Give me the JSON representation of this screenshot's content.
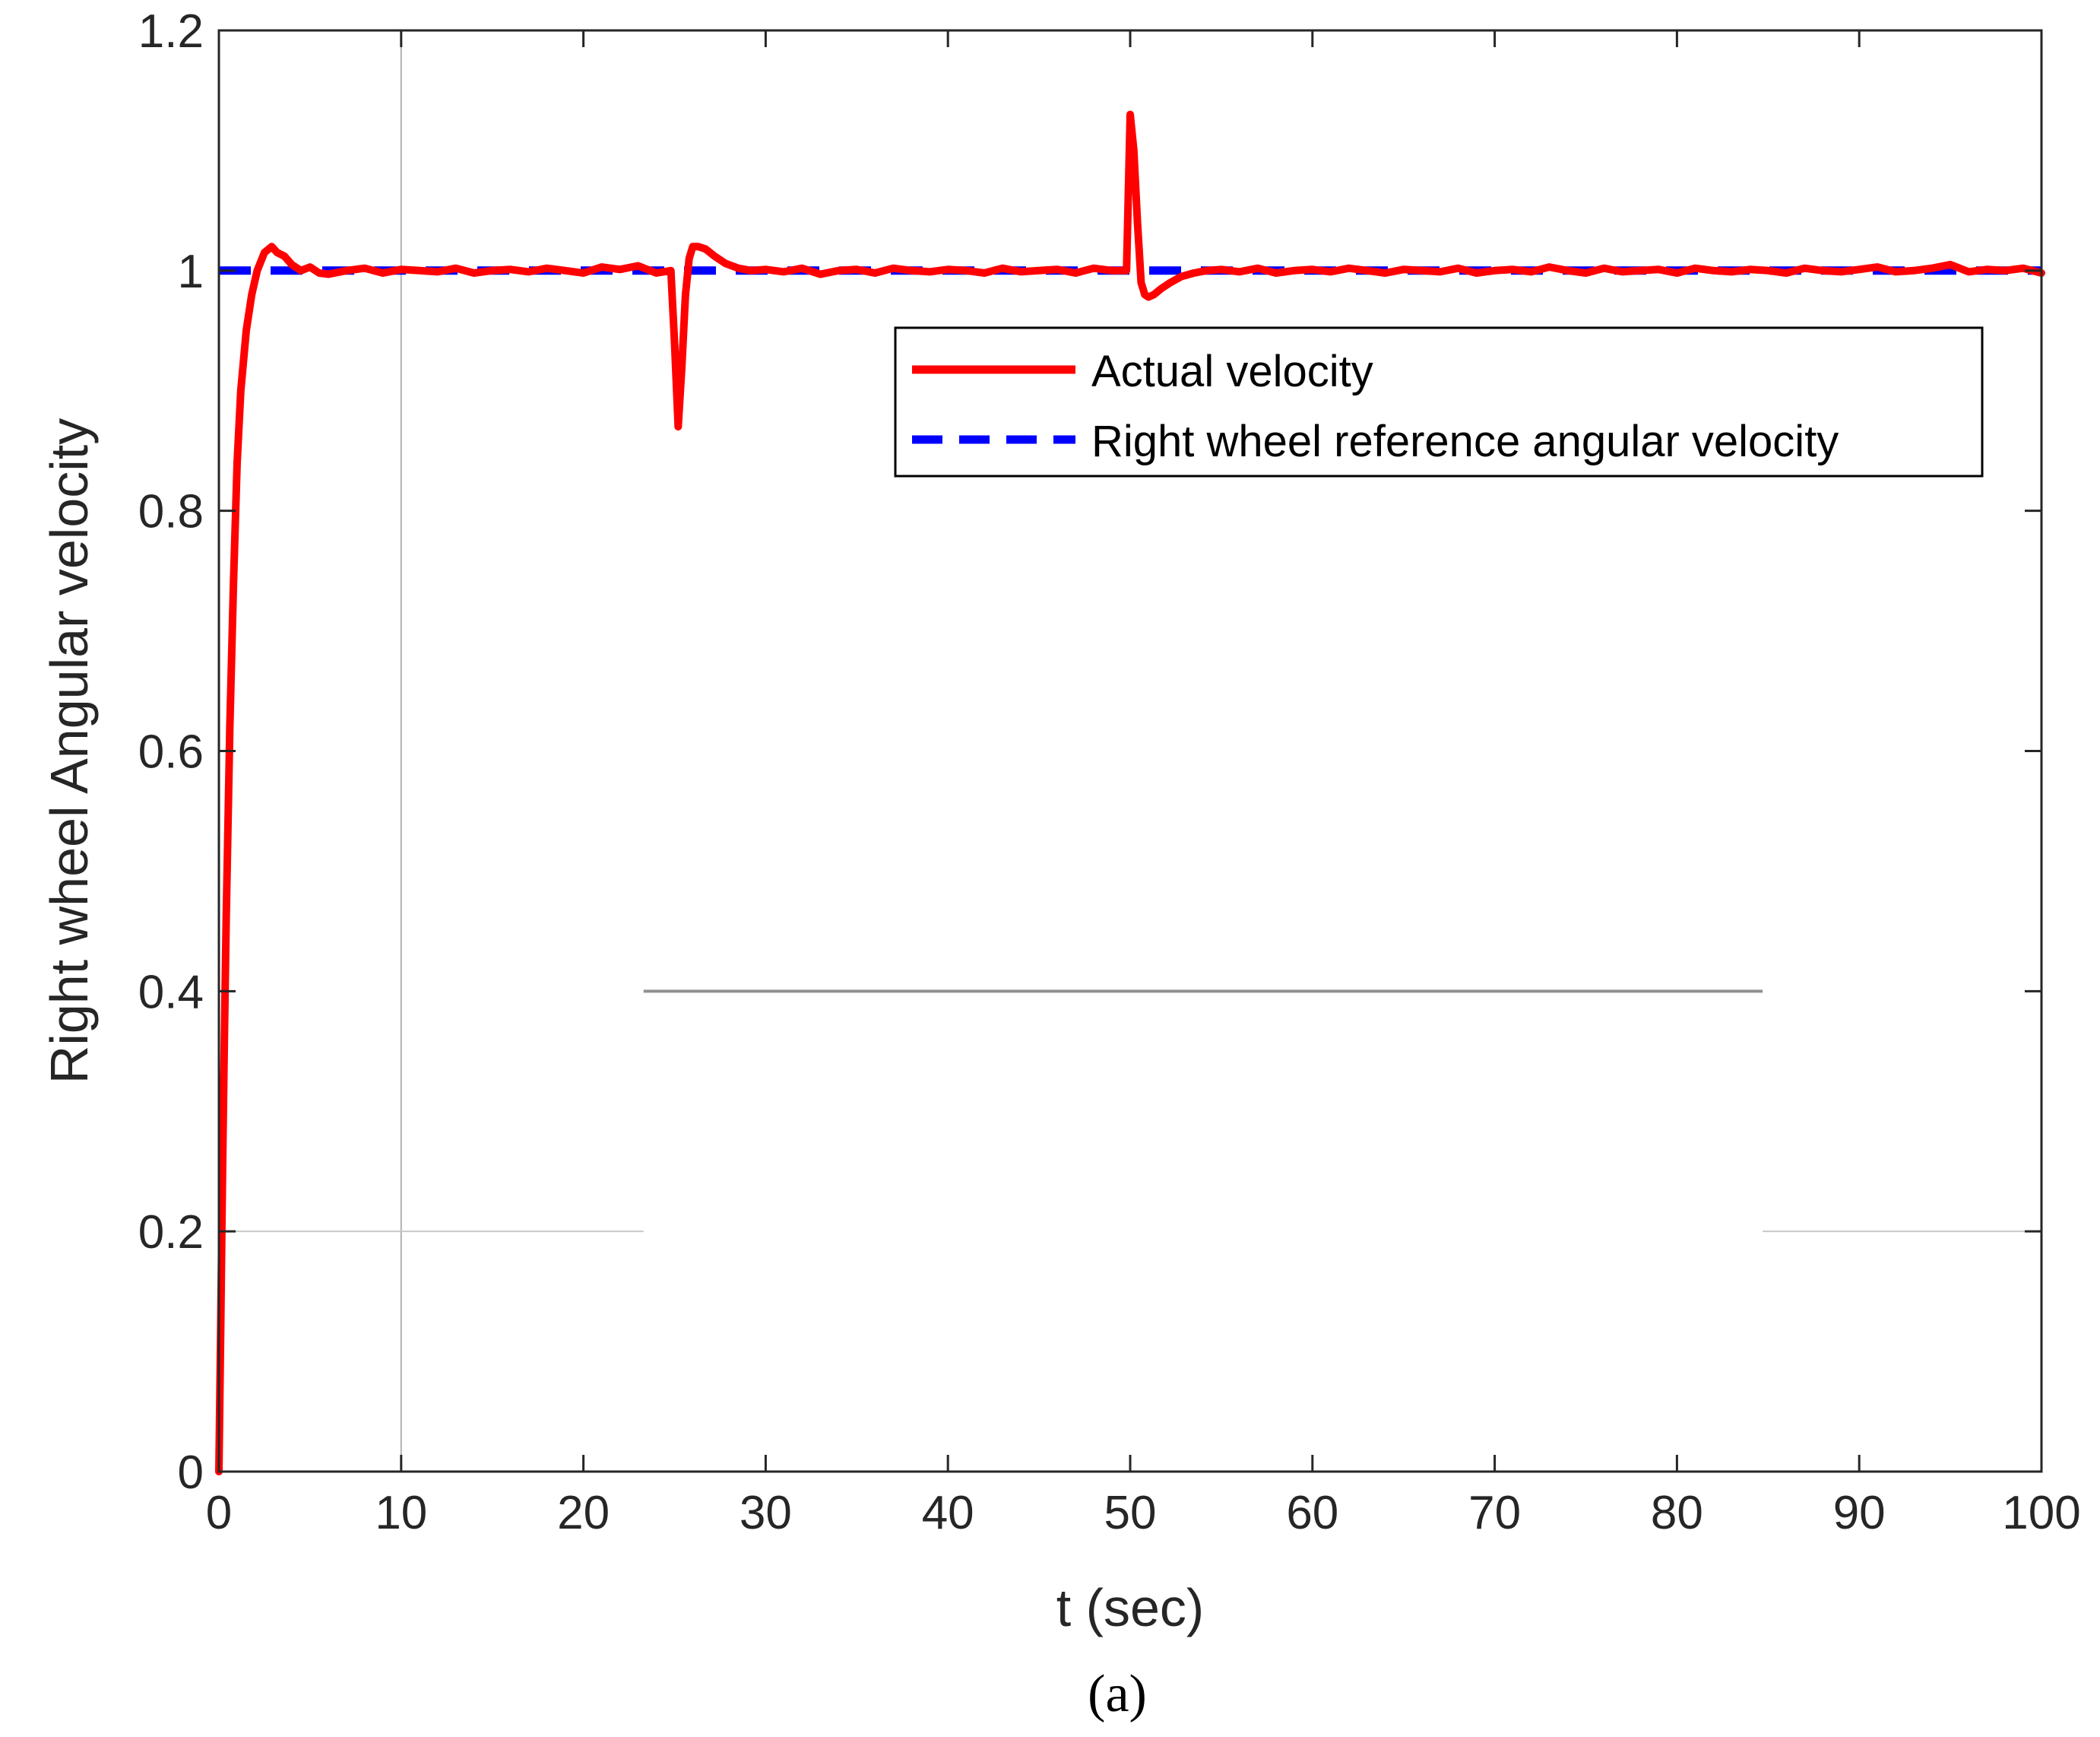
{
  "caption": "(a)",
  "chart_data": {
    "type": "line",
    "title": "",
    "xlabel": "t (sec)",
    "ylabel": "Right wheel Angular  velocity",
    "xlim": [
      0,
      100
    ],
    "ylim": [
      0,
      1.2
    ],
    "x_ticks": [
      0,
      10,
      20,
      30,
      40,
      50,
      60,
      70,
      80,
      90,
      100
    ],
    "y_ticks": [
      0,
      0.2,
      0.4,
      0.6,
      0.8,
      1,
      1.2
    ],
    "x_tick_labels": [
      "0",
      "10",
      "20",
      "30",
      "40",
      "50",
      "60",
      "70",
      "80",
      "90",
      "100"
    ],
    "y_tick_labels": [
      "0",
      "0.2",
      "0.4",
      "0.6",
      "0.8",
      "1",
      "1.2"
    ],
    "legend_position": "upper-right",
    "series": [
      {
        "name": "Actual velocity",
        "color": "#ff0000",
        "style": "solid",
        "x": [
          0,
          0.1,
          0.2,
          0.3,
          0.4,
          0.6,
          0.8,
          1.0,
          1.2,
          1.5,
          1.8,
          2.1,
          2.5,
          2.9,
          3.2,
          3.6,
          4.0,
          4.5,
          5,
          5.5,
          6,
          7,
          8,
          9,
          10,
          11,
          12,
          13,
          14,
          15,
          16,
          17,
          18,
          19,
          20,
          21,
          22,
          23,
          24,
          24.8,
          25.0,
          25.2,
          25.4,
          25.6,
          25.8,
          26.0,
          26.3,
          26.7,
          27.2,
          27.8,
          28.5,
          29.2,
          30,
          31,
          32,
          33,
          34,
          35,
          36,
          37,
          38,
          39,
          40,
          41,
          42,
          43,
          44,
          45,
          46,
          47,
          48,
          49,
          49.8,
          50.0,
          50.2,
          50.4,
          50.6,
          50.8,
          51.0,
          51.3,
          51.7,
          52.2,
          52.8,
          53.5,
          54.2,
          55,
          56,
          57,
          58,
          59,
          60,
          61,
          62,
          63,
          64,
          65,
          66,
          67,
          68,
          69,
          70,
          71,
          72,
          73,
          74,
          75,
          76,
          77,
          78,
          79,
          80,
          81,
          82,
          83,
          84,
          85,
          86,
          87,
          88,
          89,
          90,
          91,
          92,
          93,
          94,
          95,
          96,
          97,
          98,
          99,
          100
        ],
        "y": [
          0,
          0.12,
          0.25,
          0.36,
          0.46,
          0.62,
          0.74,
          0.84,
          0.9,
          0.95,
          0.98,
          1.0,
          1.015,
          1.02,
          1.015,
          1.012,
          1.005,
          1.0,
          1.003,
          0.998,
          0.997,
          1.0,
          1.002,
          0.998,
          1.001,
          1.0,
          0.999,
          1.002,
          0.998,
          1.0,
          1.001,
          0.999,
          1.002,
          1.0,
          0.998,
          1.003,
          1.001,
          1.004,
          0.998,
          1.0,
          0.94,
          0.87,
          0.92,
          0.98,
          1.01,
          1.02,
          1.02,
          1.018,
          1.012,
          1.006,
          1.002,
          1.0,
          1.001,
          0.999,
          1.002,
          0.997,
          1.0,
          1.001,
          0.998,
          1.002,
          1.0,
          0.999,
          1.001,
          1.0,
          0.998,
          1.002,
          0.999,
          1.0,
          1.001,
          0.998,
          1.002,
          1.0,
          1.0,
          1.13,
          1.1,
          1.04,
          0.99,
          0.98,
          0.978,
          0.98,
          0.985,
          0.99,
          0.995,
          0.998,
          1.0,
          1.001,
          0.999,
          1.002,
          0.998,
          1.0,
          1.001,
          0.999,
          1.002,
          1.0,
          0.998,
          1.001,
          1.0,
          0.999,
          1.002,
          0.998,
          1.0,
          1.001,
          0.999,
          1.003,
          1.0,
          0.998,
          1.002,
          0.999,
          1.0,
          1.001,
          0.998,
          1.002,
          1.0,
          0.999,
          1.001,
          1.0,
          0.998,
          1.002,
          1.0,
          0.999,
          1.001,
          1.003,
          0.999,
          1.0,
          1.002,
          1.005,
          0.999,
          1.001,
          1.0,
          1.002,
          0.998
        ]
      },
      {
        "name": "Right wheel reference  angular velocity",
        "color": "#0000ff",
        "style": "dashed",
        "x": [
          0,
          100
        ],
        "y": [
          1,
          1
        ]
      }
    ]
  }
}
